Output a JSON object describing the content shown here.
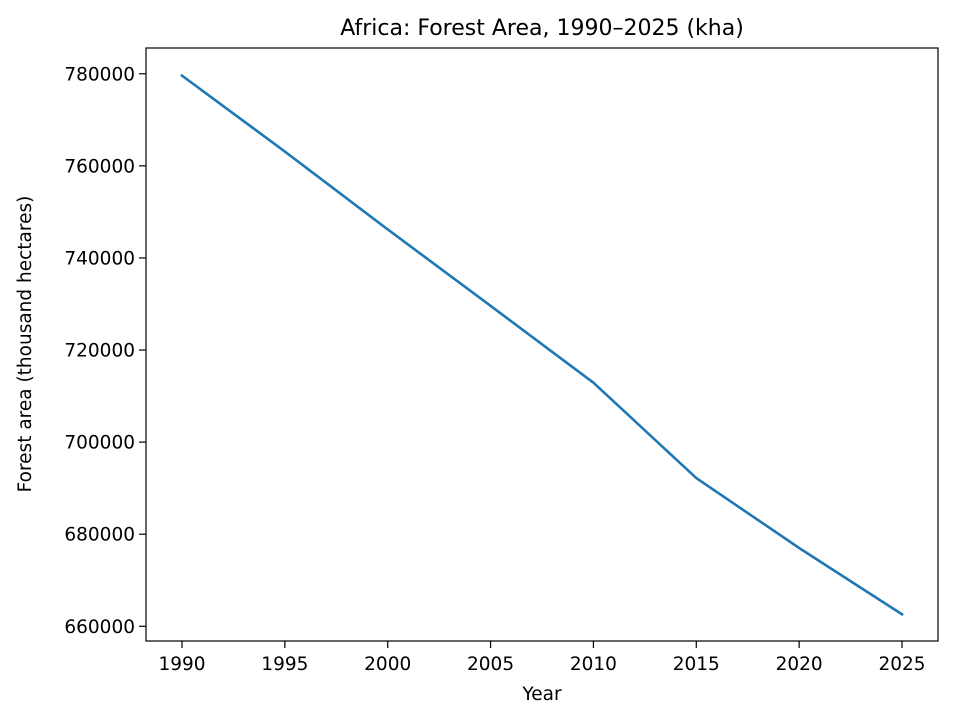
{
  "chart_data": {
    "type": "line",
    "title": "Africa: Forest Area, 1990–2025 (kha)",
    "xlabel": "Year",
    "ylabel": "Forest area (thousand hectares)",
    "xlim": [
      1988.25,
      2026.75
    ],
    "ylim": [
      656800,
      785600
    ],
    "x_ticks": [
      1990,
      1995,
      2000,
      2005,
      2010,
      2015,
      2020,
      2025
    ],
    "y_ticks": [
      660000,
      680000,
      700000,
      720000,
      740000,
      760000,
      780000
    ],
    "grid": false,
    "series": [
      {
        "color": "#1f77b4",
        "x": [
          1990,
          1995,
          2000,
          2005,
          2010,
          2015,
          2020,
          2025
        ],
        "y": [
          779600,
          763100,
          746200,
          729600,
          712900,
          692200,
          677000,
          662600
        ]
      }
    ]
  }
}
